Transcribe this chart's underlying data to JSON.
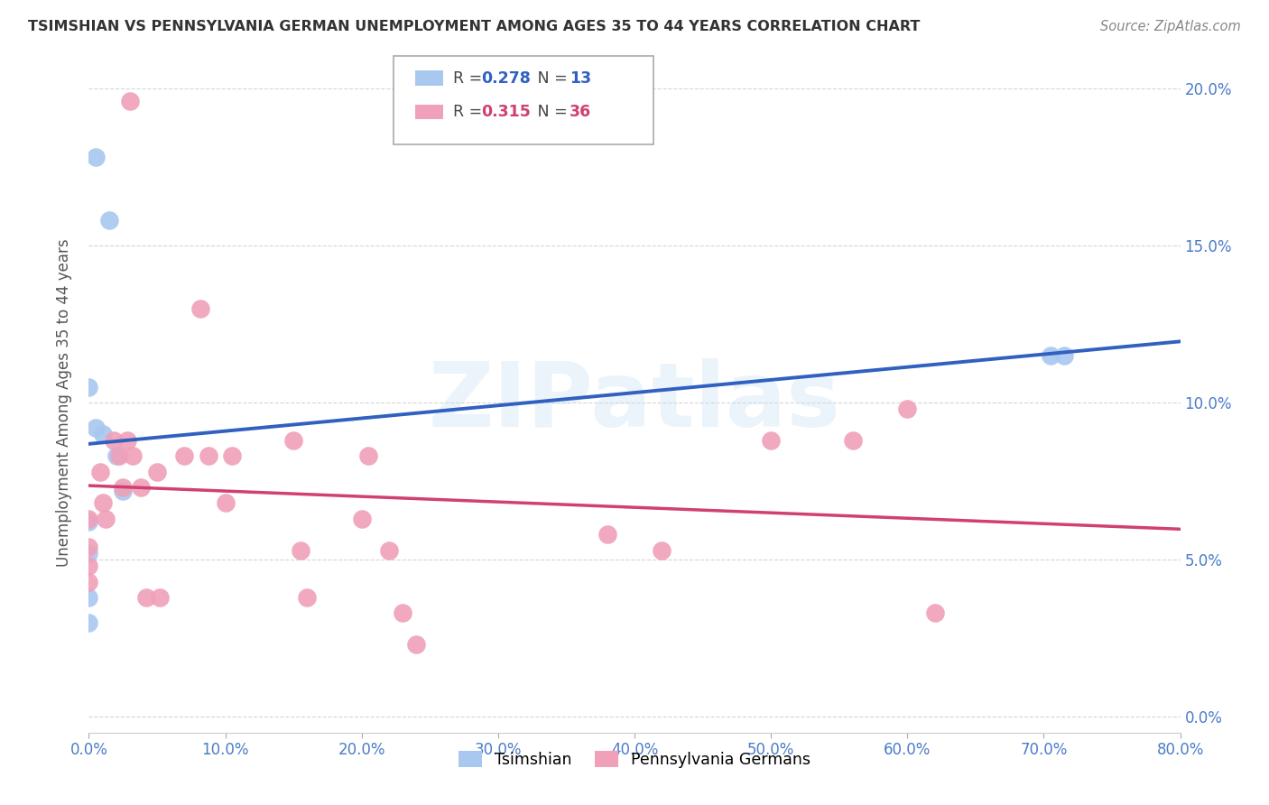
{
  "title": "TSIMSHIAN VS PENNSYLVANIA GERMAN UNEMPLOYMENT AMONG AGES 35 TO 44 YEARS CORRELATION CHART",
  "source": "Source: ZipAtlas.com",
  "ylabel": "Unemployment Among Ages 35 to 44 years",
  "xlim": [
    0,
    0.8
  ],
  "ylim": [
    -0.005,
    0.205
  ],
  "xticks": [
    0.0,
    0.1,
    0.2,
    0.3,
    0.4,
    0.5,
    0.6,
    0.7,
    0.8
  ],
  "yticks": [
    0.0,
    0.05,
    0.1,
    0.15,
    0.2
  ],
  "legend1_r": "0.278",
  "legend1_n": "13",
  "legend2_r": "0.315",
  "legend2_n": "36",
  "tsimshian_color": "#a8c8f0",
  "penn_color": "#f0a0b8",
  "tsimshian_line_color": "#3060c0",
  "penn_line_color": "#d04070",
  "penn_dash_color": "#e08090",
  "background_color": "#ffffff",
  "watermark_text": "ZIPatlas",
  "tsimshian_x": [
    0.005,
    0.015,
    0.0,
    0.005,
    0.0,
    0.0,
    0.0,
    0.01,
    0.02,
    0.025,
    0.0,
    0.705,
    0.715
  ],
  "tsimshian_y": [
    0.178,
    0.158,
    0.105,
    0.092,
    0.062,
    0.052,
    0.038,
    0.09,
    0.083,
    0.072,
    0.03,
    0.115,
    0.115
  ],
  "penn_x": [
    0.03,
    0.0,
    0.0,
    0.0,
    0.0,
    0.008,
    0.01,
    0.012,
    0.018,
    0.022,
    0.025,
    0.028,
    0.032,
    0.038,
    0.042,
    0.05,
    0.052,
    0.07,
    0.082,
    0.088,
    0.1,
    0.105,
    0.15,
    0.155,
    0.16,
    0.2,
    0.205,
    0.22,
    0.23,
    0.24,
    0.38,
    0.42,
    0.5,
    0.56,
    0.6,
    0.62
  ],
  "penn_y": [
    0.196,
    0.063,
    0.054,
    0.048,
    0.043,
    0.078,
    0.068,
    0.063,
    0.088,
    0.083,
    0.073,
    0.088,
    0.083,
    0.073,
    0.038,
    0.078,
    0.038,
    0.083,
    0.13,
    0.083,
    0.068,
    0.083,
    0.088,
    0.053,
    0.038,
    0.063,
    0.083,
    0.053,
    0.033,
    0.023,
    0.058,
    0.053,
    0.088,
    0.088,
    0.098,
    0.033
  ]
}
